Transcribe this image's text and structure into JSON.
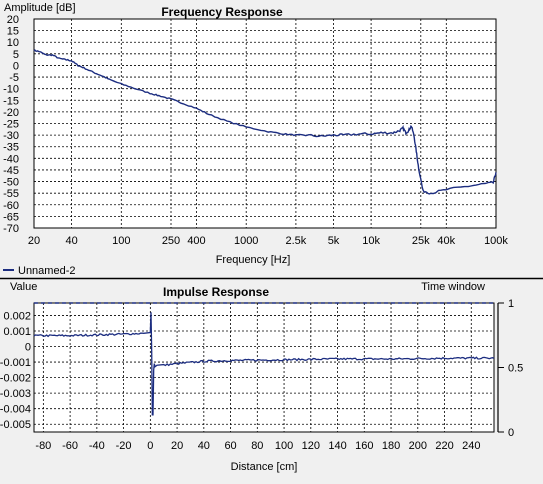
{
  "legend": {
    "color": "#1c2d80"
  },
  "chart_data": [
    {
      "type": "line",
      "title": "Frequency Response",
      "ylabel": "Amplitude [dB]",
      "xlabel": "Frequency [Hz]",
      "x_scale": "log",
      "xlim": [
        20,
        100000
      ],
      "ylim": [
        -70,
        20
      ],
      "y_ticks": [
        20,
        15,
        10,
        5,
        0,
        -5,
        -10,
        -15,
        -20,
        -25,
        -30,
        -35,
        -40,
        -45,
        -50,
        -55,
        -60,
        -65,
        -70
      ],
      "x_ticks": [
        {
          "value": 20,
          "label": "20"
        },
        {
          "value": 40,
          "label": "40"
        },
        {
          "value": 100,
          "label": "100"
        },
        {
          "value": 250,
          "label": "250"
        },
        {
          "value": 400,
          "label": "400"
        },
        {
          "value": 1000,
          "label": "1000"
        },
        {
          "value": 2500,
          "label": "2.5k"
        },
        {
          "value": 5000,
          "label": "5k"
        },
        {
          "value": 10000,
          "label": "10k"
        },
        {
          "value": 25000,
          "label": "25k"
        },
        {
          "value": 40000,
          "label": "40k"
        },
        {
          "value": 100000,
          "label": "100k"
        }
      ],
      "grid": true,
      "series": [
        {
          "name": "Unnamed-2",
          "color": "#1c2d80",
          "x": [
            20,
            22,
            25,
            28,
            32,
            36,
            40,
            45,
            50,
            60,
            70,
            80,
            100,
            130,
            170,
            200,
            250,
            300,
            400,
            500,
            700,
            1000,
            1500,
            2000,
            2500,
            3000,
            4000,
            5000,
            6000,
            8000,
            10000,
            12000,
            15000,
            17000,
            18000,
            19000,
            20000,
            21000,
            22000,
            23000,
            24000,
            26000,
            30000,
            40000,
            60000,
            80000,
            95000,
            100000
          ],
          "y": [
            6.5,
            6,
            4.5,
            4.5,
            3,
            2.5,
            2,
            0,
            -1,
            -3,
            -4.5,
            -6,
            -8,
            -10,
            -12,
            -13,
            -14.5,
            -16,
            -18.5,
            -21,
            -24,
            -26.5,
            -28.5,
            -29.5,
            -30,
            -30,
            -30.5,
            -30,
            -30,
            -29.5,
            -29.5,
            -29,
            -29,
            -28,
            -27,
            -29,
            -28,
            -26,
            -30,
            -37,
            -44,
            -54,
            -55,
            -53.5,
            -52,
            -51,
            -50.5,
            -46
          ]
        }
      ]
    },
    {
      "type": "line",
      "title": "Impulse Response",
      "ylabel": "Value",
      "xlabel": "Distance [cm]",
      "y2label": "Time window",
      "xlim": [
        -87,
        257
      ],
      "ylim": [
        -0.0055,
        0.0028
      ],
      "y_ticks": [
        0.002,
        0.001,
        0,
        -0.001,
        -0.002,
        -0.003,
        -0.004,
        -0.005
      ],
      "y_tick_labels": [
        "0.002",
        "0.001",
        "0",
        "-0.001",
        "-0.002",
        "-0.003",
        "-0.004",
        "-0.005"
      ],
      "x_ticks": [
        -80,
        -60,
        -40,
        -20,
        0,
        20,
        40,
        60,
        80,
        100,
        120,
        140,
        160,
        180,
        200,
        220,
        240
      ],
      "y2_ticks": [
        1,
        0.5,
        0
      ],
      "y2_tick_labels": [
        "1",
        "0.5",
        "0"
      ],
      "y2lim": [
        0,
        1
      ],
      "grid": true,
      "series": [
        {
          "name": "Unnamed-2",
          "color": "#1c2d80",
          "x": [
            -87,
            -60,
            -40,
            -20,
            -5,
            0,
            0.5,
            1,
            1.5,
            2,
            2.5,
            3,
            3.5,
            5,
            10,
            20,
            40,
            60,
            100,
            140,
            180,
            220,
            257
          ],
          "y": [
            0.0007,
            0.0007,
            0.00075,
            0.0008,
            0.00085,
            0.0009,
            0.0022,
            -0.0003,
            -0.0044,
            -0.0044,
            -0.0015,
            -0.0011,
            -0.0013,
            -0.0012,
            -0.0012,
            -0.0011,
            -0.00095,
            -0.0009,
            -0.00085,
            -0.0008,
            -0.0008,
            -0.00075,
            -0.00075
          ]
        },
        {
          "name": "time-window",
          "color": "#1c2d80",
          "axis": "y2",
          "x": [
            -87,
            257
          ],
          "y": [
            1,
            1
          ]
        }
      ]
    }
  ]
}
